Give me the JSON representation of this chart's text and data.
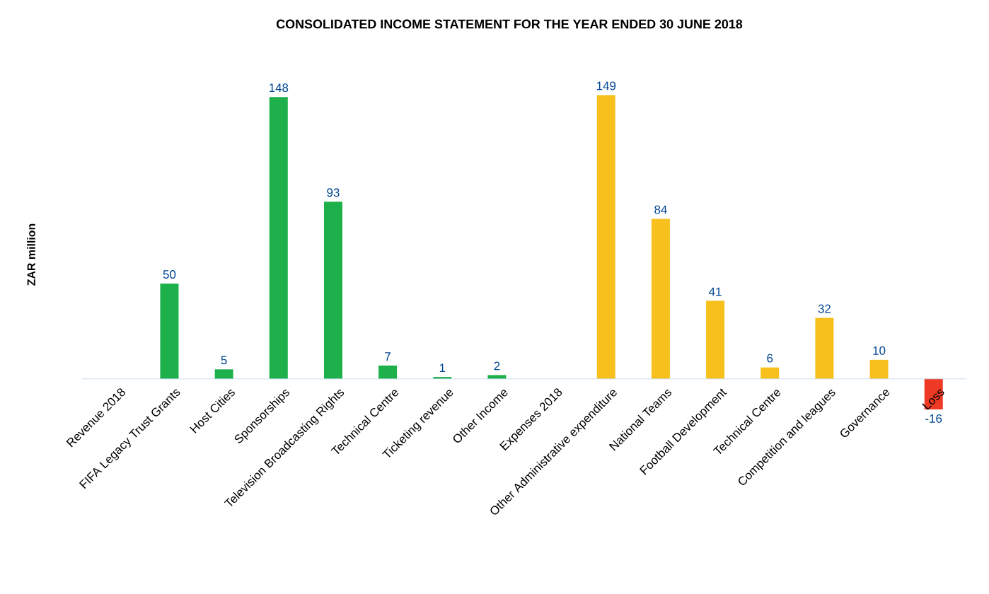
{
  "chart_data": {
    "type": "bar",
    "title": "CONSOLIDATED INCOME STATEMENT FOR THE YEAR ENDED 30 JUNE 2018",
    "ylabel": "ZAR million",
    "categories": [
      "Revenue 2018",
      "FIFA Legacy Trust Grants",
      "Host Cities",
      "Sponsorships",
      "Television Broadcasting Rights",
      "Technical Centre",
      "Ticketing revenue",
      "Other Income",
      "Expenses 2018",
      "Other Administrative expenditure",
      "National Teams",
      "Football Development",
      "Technical Centre",
      "Competition and leagues",
      "Governance",
      "Loss"
    ],
    "values": [
      null,
      50,
      5,
      148,
      93,
      7,
      1,
      2,
      null,
      149,
      84,
      41,
      6,
      32,
      10,
      -16
    ],
    "colors": [
      "#1db04b",
      "#1db04b",
      "#1db04b",
      "#1db04b",
      "#1db04b",
      "#1db04b",
      "#1db04b",
      "#1db04b",
      "#f8c01c",
      "#f8c01c",
      "#f8c01c",
      "#f8c01c",
      "#f8c01c",
      "#f8c01c",
      "#f8c01c",
      "#ee3a24"
    ],
    "data_labels": true
  }
}
